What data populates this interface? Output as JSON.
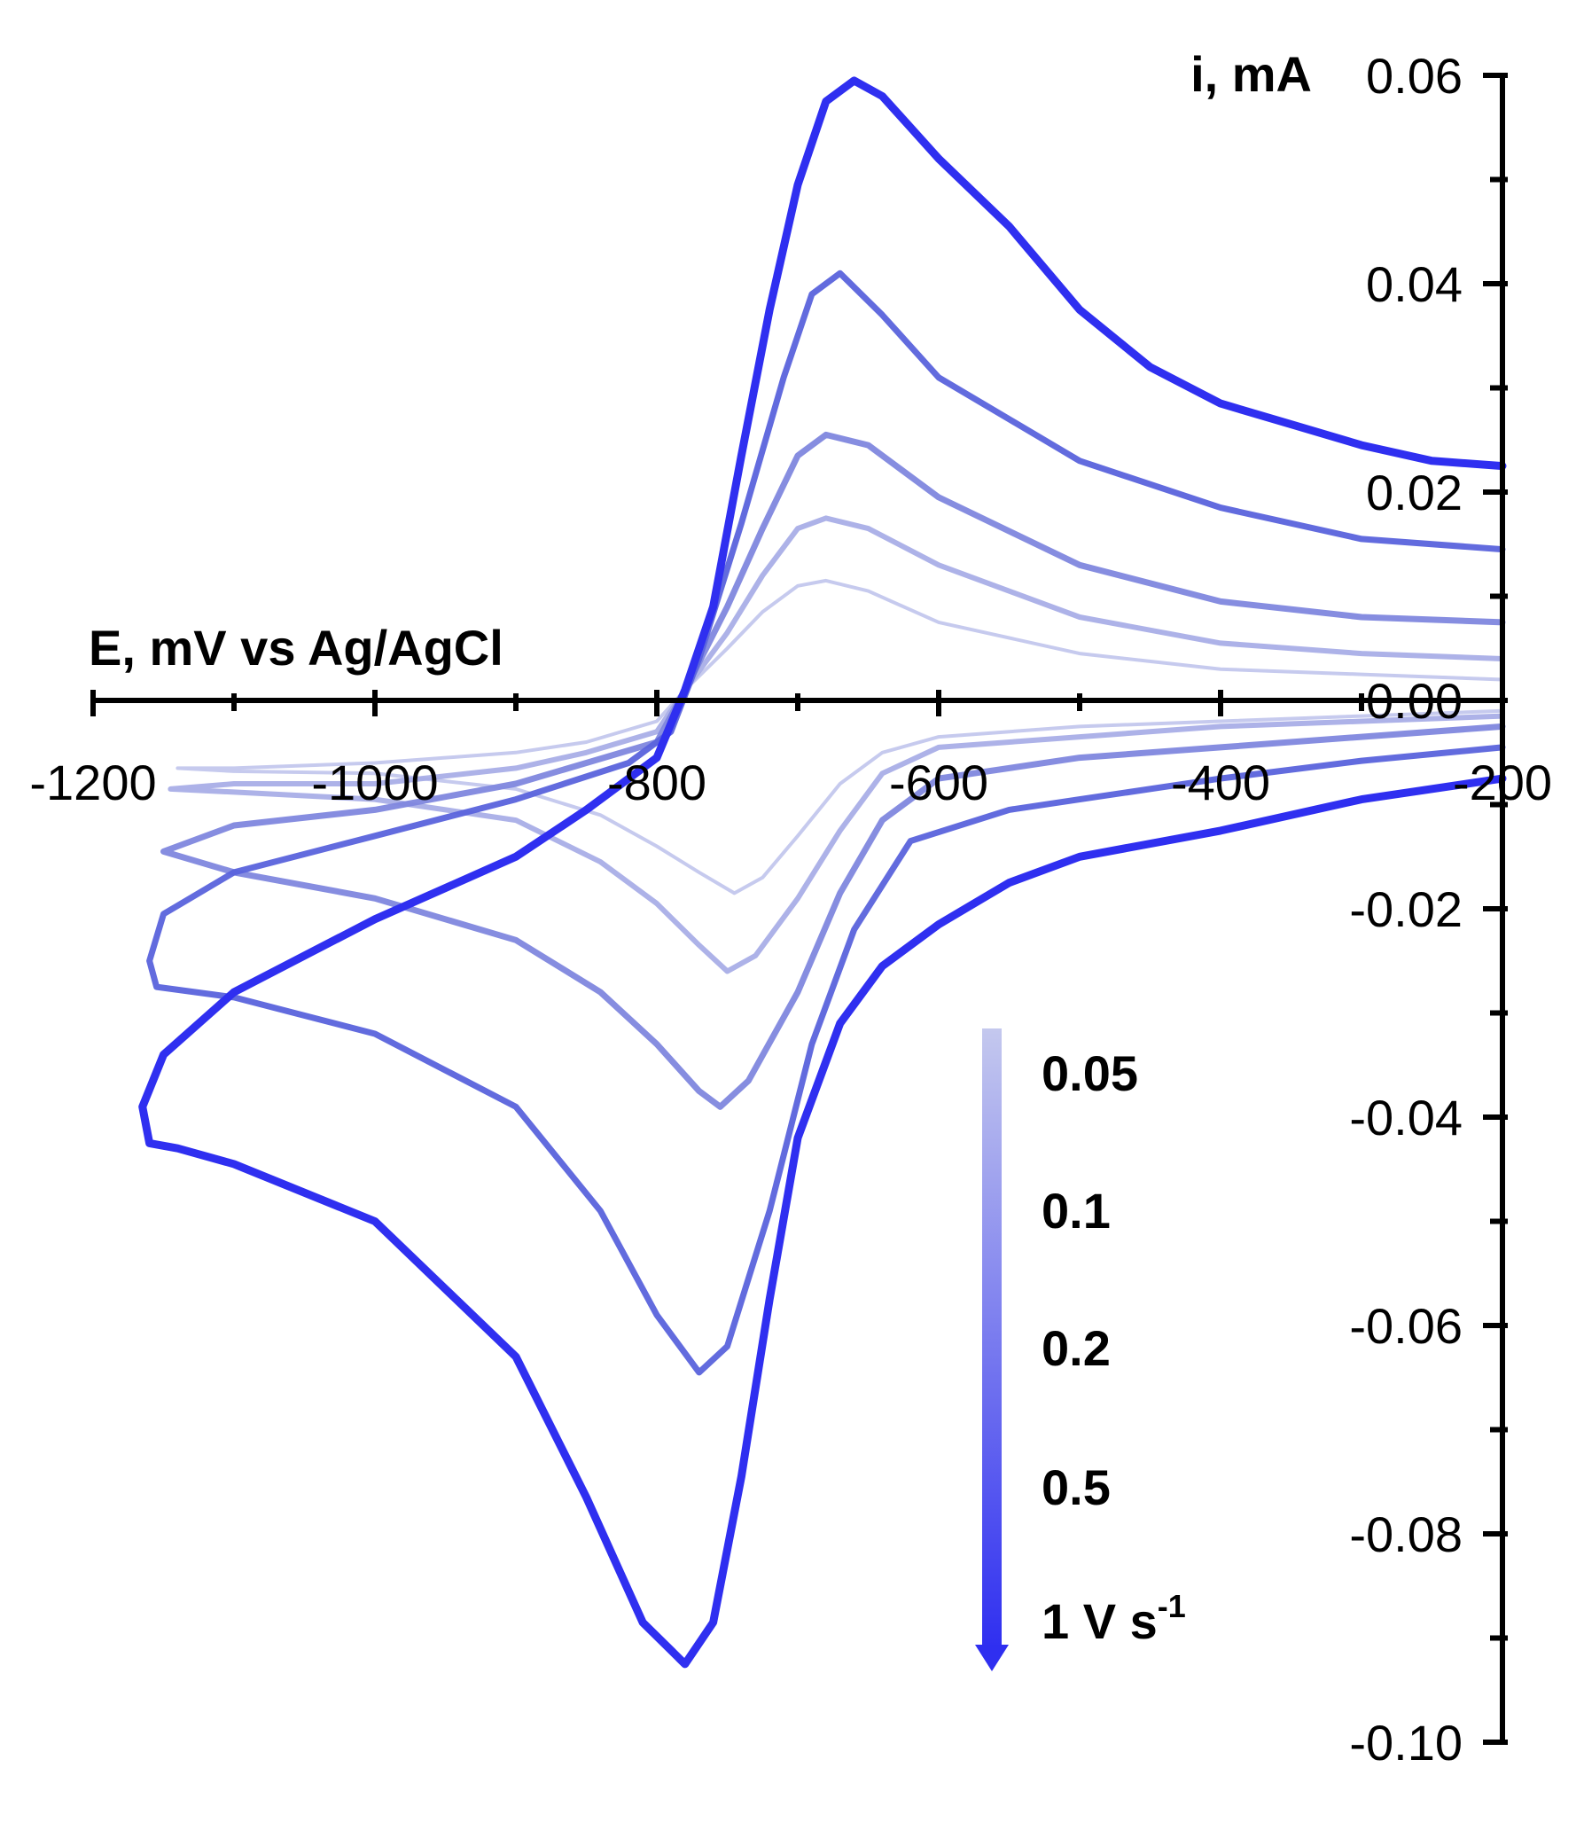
{
  "chart_data": {
    "type": "line",
    "xlabel": "E, mV vs Ag/AgCl",
    "ylabel": "i, mA",
    "xlim": [
      -1200,
      -200
    ],
    "ylim": [
      -0.1,
      0.06
    ],
    "x_ticks": [
      -1200,
      -1000,
      -800,
      -600,
      -400,
      -200
    ],
    "x_tick_labels": [
      "-1200",
      "-1000",
      "-800",
      "-600",
      "-400",
      "-200"
    ],
    "y_ticks": [
      0.06,
      0.04,
      0.02,
      0.0,
      -0.02,
      -0.04,
      -0.06,
      -0.08,
      -0.1
    ],
    "y_tick_labels": [
      "0.06",
      "0.04",
      "0.02",
      "0.00",
      "-0.02",
      "-0.04",
      "-0.06",
      "-0.08",
      "-0.10"
    ],
    "legend": {
      "labels": [
        "0.05",
        "0.1",
        "0.2",
        "0.5",
        "1 V s"
      ],
      "unit_superscript": "-1",
      "placement": "bottom-center",
      "style": "gradient-arrow"
    },
    "series": [
      {
        "name": "0.05",
        "color": "#c0c4ec",
        "forward": [
          [
            -200,
            0.002
          ],
          [
            -300,
            0.0025
          ],
          [
            -400,
            0.003
          ],
          [
            -500,
            0.0045
          ],
          [
            -600,
            0.0075
          ],
          [
            -650,
            0.0105
          ],
          [
            -680,
            0.0115
          ],
          [
            -700,
            0.011
          ],
          [
            -725,
            0.0085
          ],
          [
            -750,
            0.005
          ],
          [
            -780,
            0.001
          ],
          [
            -800,
            -0.002
          ],
          [
            -850,
            -0.004
          ],
          [
            -900,
            -0.005
          ],
          [
            -1000,
            -0.006
          ],
          [
            -1100,
            -0.0065
          ],
          [
            -1140,
            -0.0065
          ]
        ],
        "reverse": [
          [
            -1140,
            -0.0065
          ],
          [
            -1100,
            -0.0068
          ],
          [
            -1000,
            -0.007
          ],
          [
            -900,
            -0.0085
          ],
          [
            -840,
            -0.011
          ],
          [
            -800,
            -0.014
          ],
          [
            -770,
            -0.0165
          ],
          [
            -745,
            -0.0185
          ],
          [
            -725,
            -0.017
          ],
          [
            -700,
            -0.013
          ],
          [
            -670,
            -0.008
          ],
          [
            -640,
            -0.005
          ],
          [
            -600,
            -0.0035
          ],
          [
            -500,
            -0.0025
          ],
          [
            -400,
            -0.002
          ],
          [
            -300,
            -0.0015
          ],
          [
            -200,
            -0.001
          ]
        ]
      },
      {
        "name": "0.1",
        "color": "#a4aae6",
        "forward": [
          [
            -200,
            0.004
          ],
          [
            -300,
            0.0045
          ],
          [
            -400,
            0.0055
          ],
          [
            -500,
            0.008
          ],
          [
            -600,
            0.013
          ],
          [
            -650,
            0.0165
          ],
          [
            -680,
            0.0175
          ],
          [
            -700,
            0.0165
          ],
          [
            -725,
            0.012
          ],
          [
            -750,
            0.0065
          ],
          [
            -780,
            0.001
          ],
          [
            -800,
            -0.003
          ],
          [
            -850,
            -0.005
          ],
          [
            -900,
            -0.0065
          ],
          [
            -1000,
            -0.008
          ],
          [
            -1100,
            -0.008
          ],
          [
            -1145,
            -0.0085
          ]
        ],
        "reverse": [
          [
            -1145,
            -0.0085
          ],
          [
            -1100,
            -0.0088
          ],
          [
            -1000,
            -0.0095
          ],
          [
            -900,
            -0.0115
          ],
          [
            -840,
            -0.0155
          ],
          [
            -800,
            -0.0195
          ],
          [
            -770,
            -0.0235
          ],
          [
            -750,
            -0.026
          ],
          [
            -730,
            -0.0245
          ],
          [
            -700,
            -0.019
          ],
          [
            -670,
            -0.0125
          ],
          [
            -640,
            -0.007
          ],
          [
            -600,
            -0.0045
          ],
          [
            -500,
            -0.0035
          ],
          [
            -400,
            -0.0025
          ],
          [
            -300,
            -0.002
          ],
          [
            -200,
            -0.0015
          ]
        ]
      },
      {
        "name": "0.2",
        "color": "#7f87de",
        "forward": [
          [
            -200,
            0.0075
          ],
          [
            -300,
            0.008
          ],
          [
            -400,
            0.0095
          ],
          [
            -500,
            0.013
          ],
          [
            -600,
            0.0195
          ],
          [
            -650,
            0.0245
          ],
          [
            -680,
            0.0255
          ],
          [
            -700,
            0.0235
          ],
          [
            -725,
            0.0165
          ],
          [
            -750,
            0.009
          ],
          [
            -780,
            0.001
          ],
          [
            -800,
            -0.004
          ],
          [
            -850,
            -0.006
          ],
          [
            -900,
            -0.008
          ],
          [
            -1000,
            -0.0105
          ],
          [
            -1100,
            -0.012
          ],
          [
            -1150,
            -0.0145
          ]
        ],
        "reverse": [
          [
            -1150,
            -0.0145
          ],
          [
            -1100,
            -0.0165
          ],
          [
            -1000,
            -0.019
          ],
          [
            -900,
            -0.023
          ],
          [
            -840,
            -0.028
          ],
          [
            -800,
            -0.033
          ],
          [
            -770,
            -0.0375
          ],
          [
            -755,
            -0.039
          ],
          [
            -735,
            -0.0365
          ],
          [
            -700,
            -0.028
          ],
          [
            -670,
            -0.0185
          ],
          [
            -640,
            -0.0115
          ],
          [
            -600,
            -0.0075
          ],
          [
            -500,
            -0.0055
          ],
          [
            -400,
            -0.0045
          ],
          [
            -300,
            -0.0035
          ],
          [
            -200,
            -0.0025
          ]
        ]
      },
      {
        "name": "0.5",
        "color": "#5a63dc",
        "forward": [
          [
            -200,
            0.0145
          ],
          [
            -300,
            0.0155
          ],
          [
            -400,
            0.0185
          ],
          [
            -500,
            0.023
          ],
          [
            -600,
            0.031
          ],
          [
            -640,
            0.037
          ],
          [
            -670,
            0.041
          ],
          [
            -690,
            0.039
          ],
          [
            -710,
            0.031
          ],
          [
            -740,
            0.017
          ],
          [
            -770,
            0.004
          ],
          [
            -790,
            -0.003
          ],
          [
            -820,
            -0.006
          ],
          [
            -900,
            -0.0095
          ],
          [
            -1000,
            -0.013
          ],
          [
            -1100,
            -0.0165
          ],
          [
            -1150,
            -0.0205
          ],
          [
            -1160,
            -0.025
          ],
          [
            -1155,
            -0.0275
          ]
        ],
        "reverse": [
          [
            -1155,
            -0.0275
          ],
          [
            -1100,
            -0.0285
          ],
          [
            -1000,
            -0.032
          ],
          [
            -900,
            -0.039
          ],
          [
            -840,
            -0.049
          ],
          [
            -800,
            -0.059
          ],
          [
            -770,
            -0.0645
          ],
          [
            -750,
            -0.062
          ],
          [
            -720,
            -0.049
          ],
          [
            -690,
            -0.033
          ],
          [
            -660,
            -0.022
          ],
          [
            -620,
            -0.0135
          ],
          [
            -550,
            -0.0105
          ],
          [
            -500,
            -0.0095
          ],
          [
            -400,
            -0.0075
          ],
          [
            -300,
            -0.0058
          ],
          [
            -200,
            -0.0045
          ]
        ]
      },
      {
        "name": "1 V s-1",
        "color": "#2f2ff0",
        "forward": [
          [
            -200,
            0.0225
          ],
          [
            -250,
            0.023
          ],
          [
            -300,
            0.0245
          ],
          [
            -350,
            0.0265
          ],
          [
            -400,
            0.0285
          ],
          [
            -450,
            0.032
          ],
          [
            -500,
            0.0375
          ],
          [
            -550,
            0.0455
          ],
          [
            -600,
            0.052
          ],
          [
            -640,
            0.058
          ],
          [
            -660,
            0.0595
          ],
          [
            -680,
            0.0575
          ],
          [
            -700,
            0.0495
          ],
          [
            -720,
            0.0375
          ],
          [
            -740,
            0.0235
          ],
          [
            -760,
            0.009
          ],
          [
            -780,
            0.001
          ],
          [
            -800,
            -0.0055
          ],
          [
            -850,
            -0.0105
          ],
          [
            -900,
            -0.015
          ],
          [
            -1000,
            -0.021
          ],
          [
            -1100,
            -0.028
          ],
          [
            -1150,
            -0.034
          ],
          [
            -1165,
            -0.039
          ],
          [
            -1160,
            -0.0425
          ]
        ],
        "reverse": [
          [
            -1160,
            -0.0425
          ],
          [
            -1140,
            -0.043
          ],
          [
            -1100,
            -0.0445
          ],
          [
            -1000,
            -0.05
          ],
          [
            -900,
            -0.063
          ],
          [
            -850,
            -0.0765
          ],
          [
            -810,
            -0.0885
          ],
          [
            -780,
            -0.0925
          ],
          [
            -760,
            -0.0885
          ],
          [
            -740,
            -0.0745
          ],
          [
            -720,
            -0.0575
          ],
          [
            -700,
            -0.042
          ],
          [
            -670,
            -0.031
          ],
          [
            -640,
            -0.0255
          ],
          [
            -600,
            -0.0215
          ],
          [
            -550,
            -0.0175
          ],
          [
            -500,
            -0.015
          ],
          [
            -400,
            -0.0125
          ],
          [
            -300,
            -0.0095
          ],
          [
            -200,
            -0.0075
          ]
        ]
      }
    ]
  }
}
